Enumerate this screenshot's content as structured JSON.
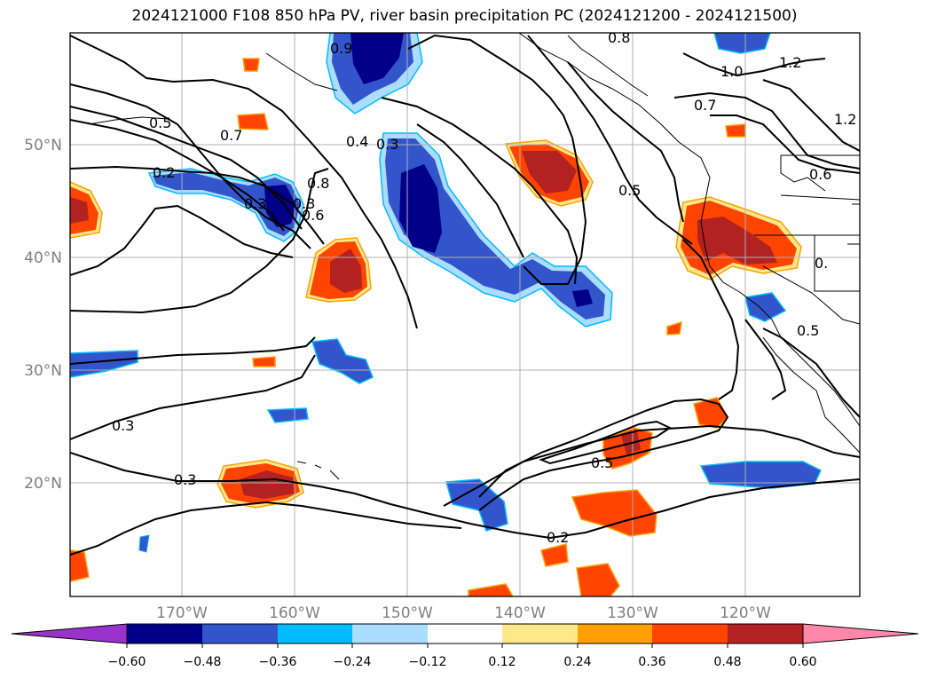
{
  "title": "2024121000 F108 850 hPa PV, river basin precipitation PC (2024121200 - 2024121500)",
  "latitude_labels": [
    "50°N",
    "40°N",
    "30°N",
    "20°N"
  ],
  "longitude_labels": [
    "170°W",
    "160°W",
    "150°W",
    "140°W",
    "130°W",
    "120°W"
  ],
  "contour_labels": [
    "0.5",
    "0.7",
    "0.2",
    "0.3",
    "0.3",
    "0.8",
    "0.6",
    "0.4",
    "0.3",
    "0.9",
    "0.8",
    "1.0",
    "1.2",
    "1.2",
    "0.7",
    "0.5",
    "0.6",
    "0.",
    "0.5",
    "0.3",
    "0.3",
    "0.5",
    "0.2"
  ],
  "colorbar": {
    "ticks": [
      "−0.60",
      "−0.48",
      "−0.36",
      "−0.24",
      "−0.12",
      "0.12",
      "0.24",
      "0.36",
      "0.48",
      "0.60"
    ],
    "colors": [
      "#9933cc",
      "#000088",
      "#3355cc",
      "#00bbff",
      "#aaddff",
      "#ffffff",
      "#ffe88a",
      "#ffa000",
      "#ff4400",
      "#b22222",
      "#ff88aa"
    ]
  }
}
